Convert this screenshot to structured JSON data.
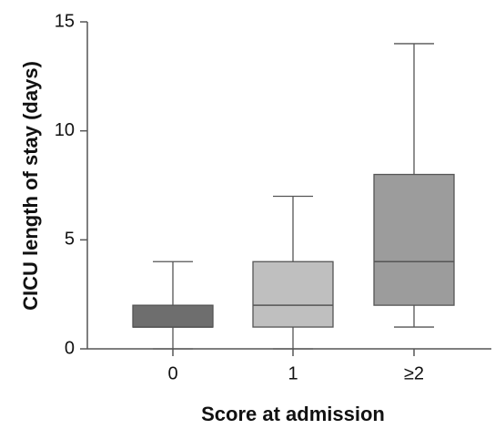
{
  "chart_data": {
    "type": "box",
    "xlabel": "Score at admission",
    "ylabel": "CICU length of stay (days)",
    "categories": [
      "0",
      "1",
      "≥2"
    ],
    "colors": [
      "#6e6e6e",
      "#bfbfbf",
      "#9c9c9c"
    ],
    "min": [
      0,
      0,
      1
    ],
    "q1": [
      1,
      1,
      2
    ],
    "median": [
      1,
      2,
      4
    ],
    "q3": [
      2,
      4,
      8
    ],
    "max": [
      4,
      7,
      14
    ],
    "ylim": [
      0,
      15
    ],
    "yticks": [
      0,
      5,
      10,
      15
    ]
  }
}
